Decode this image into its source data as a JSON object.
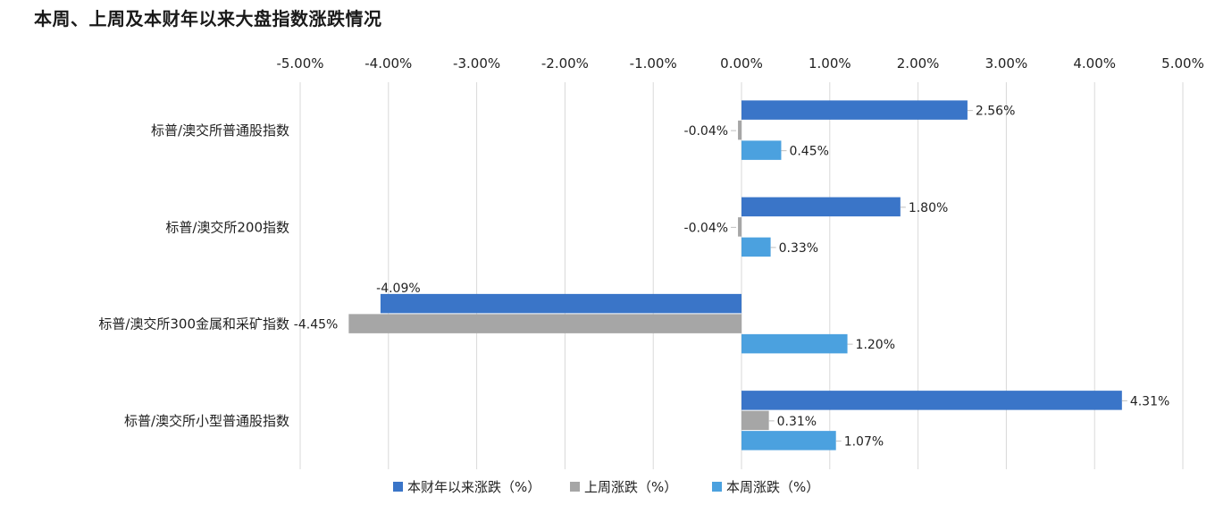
{
  "chart_data": {
    "type": "bar",
    "orientation": "horizontal",
    "title": "本周、上周及本财年以来大盘指数涨跌情况",
    "categories": [
      "标普/澳交所普通股指数",
      "标普/澳交所200指数",
      "标普/澳交所300金属和采矿指数",
      "标普/澳交所小型普通股指数"
    ],
    "series": [
      {
        "name": "本财年以来涨跌（%）",
        "color": "#3a75c8",
        "values": [
          2.56,
          1.8,
          -4.09,
          4.31
        ],
        "labels": [
          "2.56%",
          "1.80%",
          "-4.09%",
          "4.31%"
        ]
      },
      {
        "name": "上周涨跌（%）",
        "color": "#a6a6a6",
        "values": [
          -0.04,
          -0.04,
          -4.45,
          0.31
        ],
        "labels": [
          "-0.04%",
          "-0.04%",
          "-4.45%",
          "0.31%"
        ]
      },
      {
        "name": "本周涨跌（%）",
        "color": "#4ba1df",
        "values": [
          0.45,
          0.33,
          1.2,
          1.07
        ],
        "labels": [
          "0.45%",
          "0.33%",
          "1.20%",
          "1.07%"
        ]
      }
    ],
    "xlim": [
      -5,
      5
    ],
    "ticks": [
      -5,
      -4,
      -3,
      -2,
      -1,
      0,
      1,
      2,
      3,
      4,
      5
    ],
    "tick_labels": [
      "-5.00%",
      "-4.00%",
      "-3.00%",
      "-2.00%",
      "-1.00%",
      "0.00%",
      "1.00%",
      "2.00%",
      "3.00%",
      "4.00%",
      "5.00%"
    ],
    "xaxis_position": "top",
    "grid": true,
    "legend_position": "bottom"
  }
}
